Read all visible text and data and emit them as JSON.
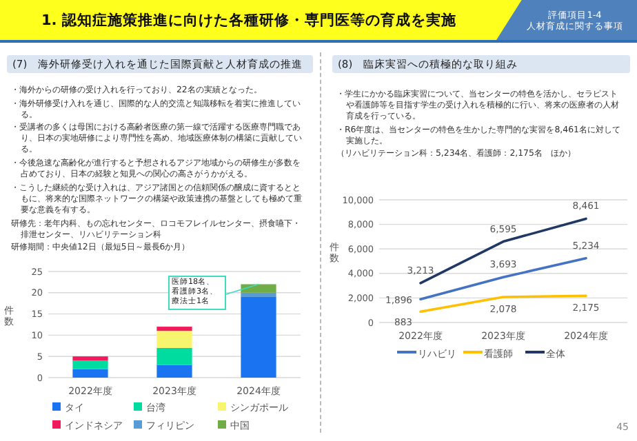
{
  "chart_data": [
    {
      "type": "other",
      "title": "1. 認知症施策推進に向けた各種研修・専門医等の育成を実施",
      "subtitle": "評価項目1-4\n人材育成に関する事項",
      "annotations": [
        "45"
      ]
    },
    {
      "type": "bar",
      "title": "(7)　海外研修受け入れを通じた国際貢献と人材育成の推進",
      "stacked": true,
      "ylabel": "件数",
      "categories": [
        "2022年度",
        "2023年度",
        "2024年度"
      ],
      "series": [
        {
          "name": "タイ",
          "color": "#1a73f0",
          "values": [
            2,
            3,
            19
          ]
        },
        {
          "name": "台湾",
          "color": "#00dca0",
          "values": [
            2,
            4,
            null
          ]
        },
        {
          "name": "シンガポール",
          "color": "#f7f56e",
          "values": [
            null,
            4,
            null
          ]
        },
        {
          "name": "インドネシア",
          "color": "#f01a5c",
          "values": [
            1,
            1,
            null
          ]
        },
        {
          "name": "フィリピン",
          "color": "#5b9bd5",
          "values": [
            null,
            null,
            1
          ]
        },
        {
          "name": "中国",
          "color": "#70ad47",
          "values": [
            null,
            null,
            2
          ]
        }
      ],
      "ylim": [
        0,
        25
      ],
      "yticks": [
        0,
        5,
        10,
        15,
        20,
        25
      ],
      "grid": "y",
      "legend": "bottom",
      "annotations": [
        "・海外からの研修の受け入れを行っており、22名の実績となった。",
        "・海外研修受け入れを通じ、国際的な人的交流と知識移転を着実に推進している。",
        "・受講者の多くは母国における高齢者医療の第一線で活躍する医療専門職であり、日本の実地研修により専門性を高め、地域医療体制の構築に貢献している。",
        "・今後急速な高齢化が進行すると予想されるアジア地域からの研修生が多数を占めており、日本の経験と知見への関心の高さがうかがえる。",
        "・こうした継続的な受け入れは、アジア諸国との信頼関係の醸成に資するとともに、将来的な国際ネットワークの構築や政策連携の基盤としても極めて重要な意義を有する。",
        "研修先：老年内科、もの忘れセンター、ロコモフレイルセンター、摂食嚥下・排泄センター、リハビリテーション科",
        "研修期間：中央値12日（最短5日～最長6か月）",
        {
          "text": "医師18名、看護師3名、療法士1名",
          "x": "2024年度",
          "y": 22
        }
      ]
    },
    {
      "type": "line",
      "title": "(8)　臨床実習への積極的な取り組み",
      "ylabel": "件数",
      "categories": [
        "2022年度",
        "2023年度",
        "2024年度"
      ],
      "series": [
        {
          "name": "リハビリ",
          "color": "#4472c4",
          "values": [
            1896,
            3693,
            5234
          ],
          "value_labels": [
            "1,896",
            "3,693",
            "5,234"
          ]
        },
        {
          "name": "看護師",
          "color": "#ffc000",
          "values": [
            883,
            2078,
            2175
          ],
          "value_labels": [
            "883",
            "2,078",
            "2,175"
          ]
        },
        {
          "name": "全体",
          "color": "#1f3864",
          "values": [
            3213,
            6595,
            8461
          ],
          "value_labels": [
            "3,213",
            "6,595",
            "8,461"
          ]
        }
      ],
      "ylim": [
        0,
        10000
      ],
      "yticks": [
        0,
        {
          "value": 2000,
          "label": "2,000"
        },
        {
          "value": 4000,
          "label": "4,000"
        },
        {
          "value": 6000,
          "label": "6,000"
        },
        {
          "value": 8000,
          "label": "8,000"
        },
        {
          "value": 10000,
          "label": "10,000"
        }
      ],
      "grid": "y",
      "legend": "bottom",
      "annotations": [
        "・学生にかかる臨床実習について、当センターの特色を活かし、セラピストや看護師等を目指す学生の受け入れを積極的に行い、将来の医療者の人材育成を行っている。",
        "・R6年度は、当センターの特色を生かした専門的な実習を8,461名に対して実施した。",
        "（リハビリテーション科：5,234名、看護師：2,175名　ほか）"
      ]
    }
  ]
}
